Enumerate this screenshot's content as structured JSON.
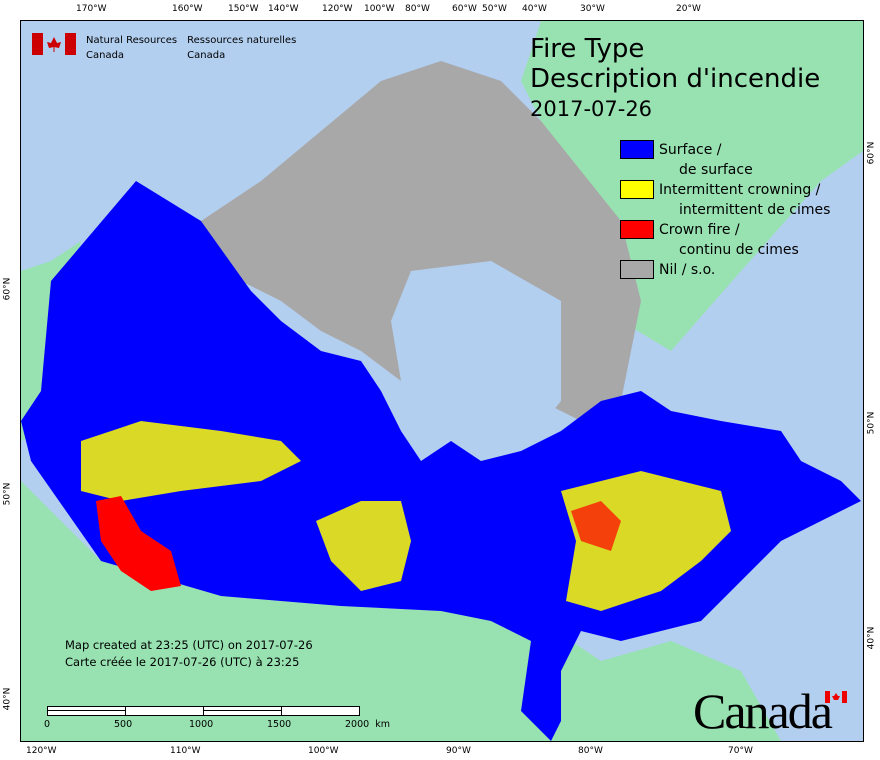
{
  "title": {
    "line1": "Fire Type",
    "line2": "Description d'incendie",
    "date": "2017-07-26"
  },
  "agency": {
    "en_line1": "Natural Resources",
    "en_line2": "Canada",
    "fr_line1": "Ressources naturelles",
    "fr_line2": "Canada"
  },
  "legend": [
    {
      "label1": "Surface /",
      "label2": "de surface",
      "color": "#0000ff"
    },
    {
      "label1": "Intermittent crowning /",
      "label2": "intermittent de cimes",
      "color": "#ffff00"
    },
    {
      "label1": "Crown fire /",
      "label2": "continu de cimes",
      "color": "#ff0000"
    },
    {
      "label1": "Nil / s.o.",
      "label2": "",
      "color": "#a8a8a8"
    }
  ],
  "credit": {
    "line1": "Map created at 23:25 (UTC) on 2017-07-26",
    "line2": "Carte créée le 2017-07-26 (UTC) à 23:25"
  },
  "scale_bar": {
    "labels": [
      "0",
      "500",
      "1000",
      "1500",
      "2000  km"
    ]
  },
  "top_ticks": [
    "170°W",
    "160°W",
    "150°W",
    "140°W",
    "120°W",
    "100°W",
    "80°W",
    "60°W",
    "50°W",
    "40°W",
    "30°W",
    "20°W"
  ],
  "bottom_ticks": [
    "120°W",
    "110°W",
    "100°W",
    "90°W",
    "80°W",
    "70°W"
  ],
  "left_ticks": [
    "60°N",
    "50°N",
    "40°N"
  ],
  "right_ticks": [
    "60°N",
    "50°N",
    "40°N"
  ],
  "wordmark": "Canada",
  "colors": {
    "ocean": "#b3cff0",
    "land": "#98e2b2",
    "surface": "#0000ff",
    "intermittent": "#ffff00",
    "crown": "#ff0000",
    "nil": "#a8a8a8"
  }
}
